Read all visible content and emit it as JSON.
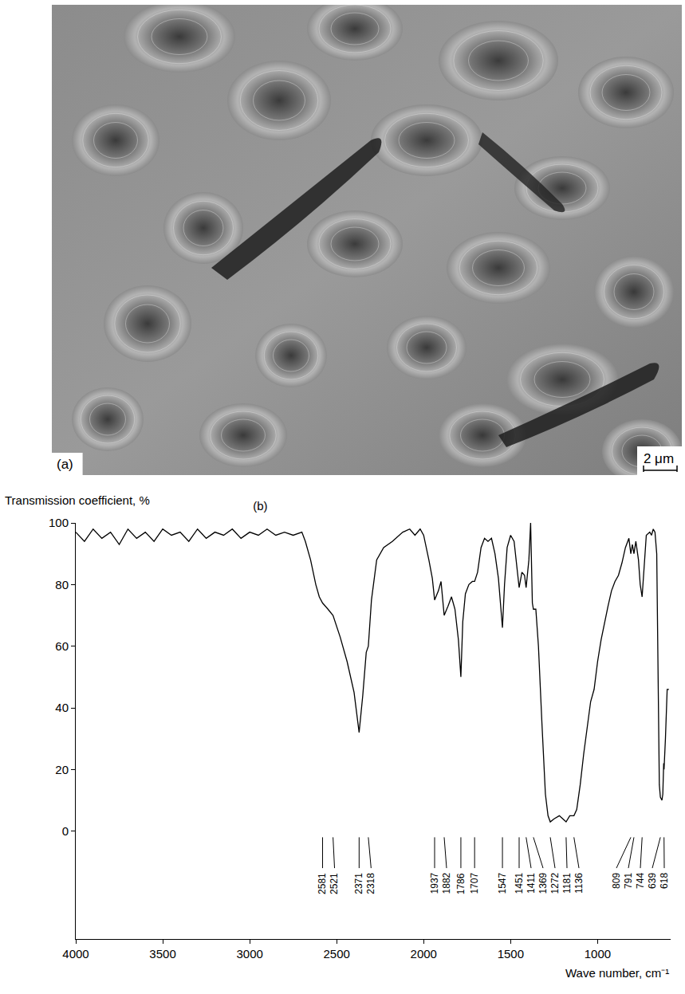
{
  "chart_data": {
    "type": "line",
    "title": "(b)",
    "ylabel": "Transmission coefficient, %",
    "xlabel": "Wave number, cm⁻¹",
    "color": "#000000",
    "grid": false,
    "tick_labels": true,
    "xlim": [
      4000,
      580
    ],
    "ylim": [
      -35,
      100
    ],
    "xticks": [
      4000,
      3500,
      3000,
      2500,
      2000,
      1500,
      1000
    ],
    "yticks": [
      0,
      20,
      40,
      60,
      80,
      100
    ],
    "peak_labels": [
      2581,
      2521,
      2371,
      2318,
      1937,
      1882,
      1786,
      1707,
      1547,
      1451,
      1411,
      1369,
      1272,
      1181,
      1136,
      809,
      791,
      744,
      639,
      618
    ],
    "x": [
      4000,
      3950,
      3900,
      3850,
      3800,
      3750,
      3700,
      3650,
      3600,
      3550,
      3500,
      3450,
      3400,
      3350,
      3300,
      3250,
      3200,
      3150,
      3100,
      3050,
      3000,
      2950,
      2900,
      2850,
      2800,
      2750,
      2700,
      2680,
      2650,
      2620,
      2600,
      2581,
      2550,
      2521,
      2480,
      2440,
      2400,
      2371,
      2350,
      2330,
      2318,
      2300,
      2270,
      2230,
      2180,
      2120,
      2080,
      2050,
      2020,
      2000,
      1970,
      1950,
      1937,
      1915,
      1900,
      1882,
      1860,
      1840,
      1820,
      1800,
      1786,
      1775,
      1760,
      1740,
      1720,
      1707,
      1690,
      1670,
      1650,
      1630,
      1610,
      1590,
      1570,
      1547,
      1535,
      1520,
      1500,
      1480,
      1451,
      1435,
      1420,
      1411,
      1395,
      1385,
      1375,
      1369,
      1355,
      1340,
      1320,
      1300,
      1285,
      1272,
      1250,
      1220,
      1200,
      1181,
      1160,
      1136,
      1120,
      1100,
      1080,
      1060,
      1040,
      1020,
      1000,
      980,
      960,
      940,
      920,
      900,
      880,
      860,
      840,
      820,
      809,
      800,
      791,
      780,
      765,
      755,
      744,
      735,
      720,
      700,
      690,
      680,
      670,
      660,
      650,
      645,
      639,
      630,
      625,
      620,
      618,
      610,
      600,
      590
    ],
    "values": [
      97,
      94,
      98,
      95,
      97,
      93,
      98,
      95,
      97,
      94,
      98,
      96,
      97,
      94,
      98,
      95,
      97,
      96,
      98,
      95,
      97,
      96,
      98,
      96,
      97,
      96,
      97,
      94,
      88,
      80,
      76,
      74,
      72,
      70,
      63,
      55,
      45,
      32,
      44,
      58,
      60,
      75,
      88,
      92,
      94,
      97,
      98,
      96,
      98,
      96,
      88,
      82,
      75,
      78,
      81,
      70,
      73,
      76,
      72,
      62,
      50,
      68,
      77,
      80,
      81,
      81,
      84,
      92,
      95,
      94,
      95,
      90,
      82,
      66,
      80,
      92,
      96,
      94,
      79,
      84,
      83,
      79,
      88,
      100,
      74,
      72,
      72,
      60,
      35,
      12,
      5,
      3,
      4,
      5,
      4,
      3,
      5,
      5,
      7,
      15,
      25,
      33,
      42,
      46,
      55,
      62,
      68,
      73,
      78,
      81,
      83,
      87,
      92,
      95,
      90,
      93,
      90,
      94,
      88,
      80,
      76,
      84,
      96,
      97,
      96,
      98,
      97,
      90,
      40,
      15,
      11,
      10,
      12,
      22,
      20,
      30,
      46,
      46
    ]
  },
  "image_panel": {
    "label": "(a)",
    "scale_bar": "2 μm"
  }
}
